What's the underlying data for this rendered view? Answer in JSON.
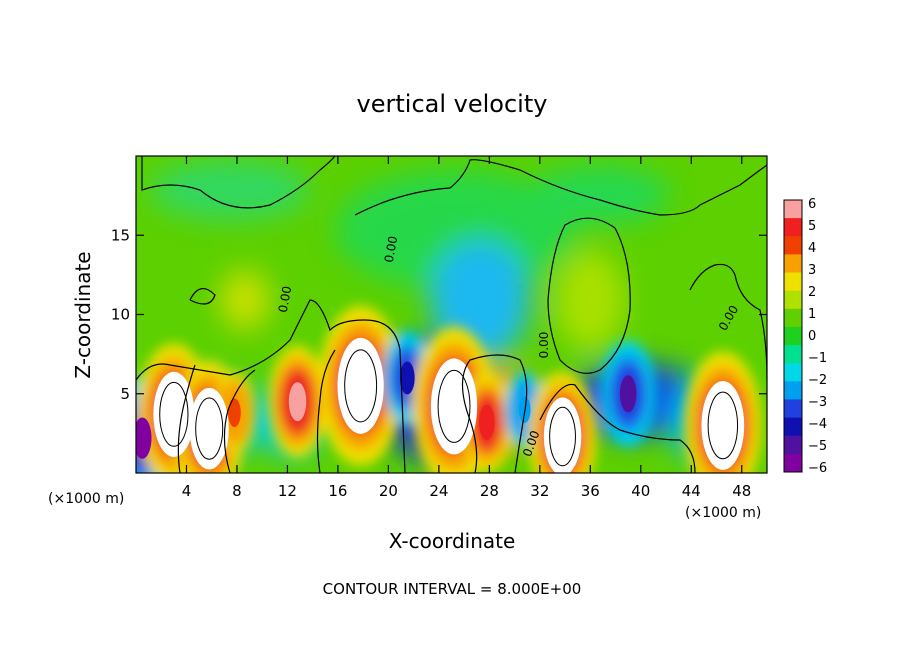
{
  "chart_data": {
    "type": "heatmap",
    "title": "vertical velocity",
    "xlabel": "X-coordinate",
    "ylabel": "Z-coordinate",
    "x_unit_left": "(×1000 m)",
    "x_unit_right": "(×1000 m)",
    "footer": "CONTOUR INTERVAL = 8.000E+00",
    "xlim": [
      0,
      50
    ],
    "ylim": [
      0,
      20
    ],
    "x_ticks": [
      4,
      8,
      12,
      16,
      20,
      24,
      28,
      32,
      36,
      40,
      44,
      48
    ],
    "y_ticks": [
      5,
      10,
      15
    ],
    "zero_labels": [
      "0.00",
      "0.00",
      "0.00",
      "0.00",
      "0.00"
    ],
    "colorbar": {
      "ticks": [
        "6",
        "5",
        "4",
        "3",
        "2",
        "1",
        "0",
        "−1",
        "−2",
        "−3",
        "−4",
        "−5",
        "−6"
      ],
      "colors": [
        "#f7a1a1",
        "#ee2020",
        "#f04000",
        "#f8a000",
        "#f0e000",
        "#b0e000",
        "#60d000",
        "#20d020",
        "#00e090",
        "#00d8e8",
        "#00a0f0",
        "#2040e0",
        "#1010b0",
        "#5010a0",
        "#8000a0"
      ]
    },
    "features": [
      {
        "x": 0.5,
        "z": 2.2,
        "w": -6.5
      },
      {
        "x": 3.0,
        "z": 3.7,
        "w": 8.5
      },
      {
        "x": 5.8,
        "z": 2.8,
        "w": 8.0
      },
      {
        "x": 7.8,
        "z": 3.8,
        "w": 3.5
      },
      {
        "x": 12.8,
        "z": 4.5,
        "w": 6.0
      },
      {
        "x": 17.8,
        "z": 5.5,
        "w": 10.0
      },
      {
        "x": 21.5,
        "z": 6.0,
        "w": -4.5
      },
      {
        "x": 25.2,
        "z": 4.2,
        "w": 10.0
      },
      {
        "x": 27.8,
        "z": 3.2,
        "w": 5.0
      },
      {
        "x": 30.8,
        "z": 4.0,
        "w": -3.0
      },
      {
        "x": 33.8,
        "z": 2.3,
        "w": 7.5
      },
      {
        "x": 39.0,
        "z": 5.0,
        "w": -5.5
      },
      {
        "x": 46.5,
        "z": 3.0,
        "w": 9.0
      }
    ]
  }
}
